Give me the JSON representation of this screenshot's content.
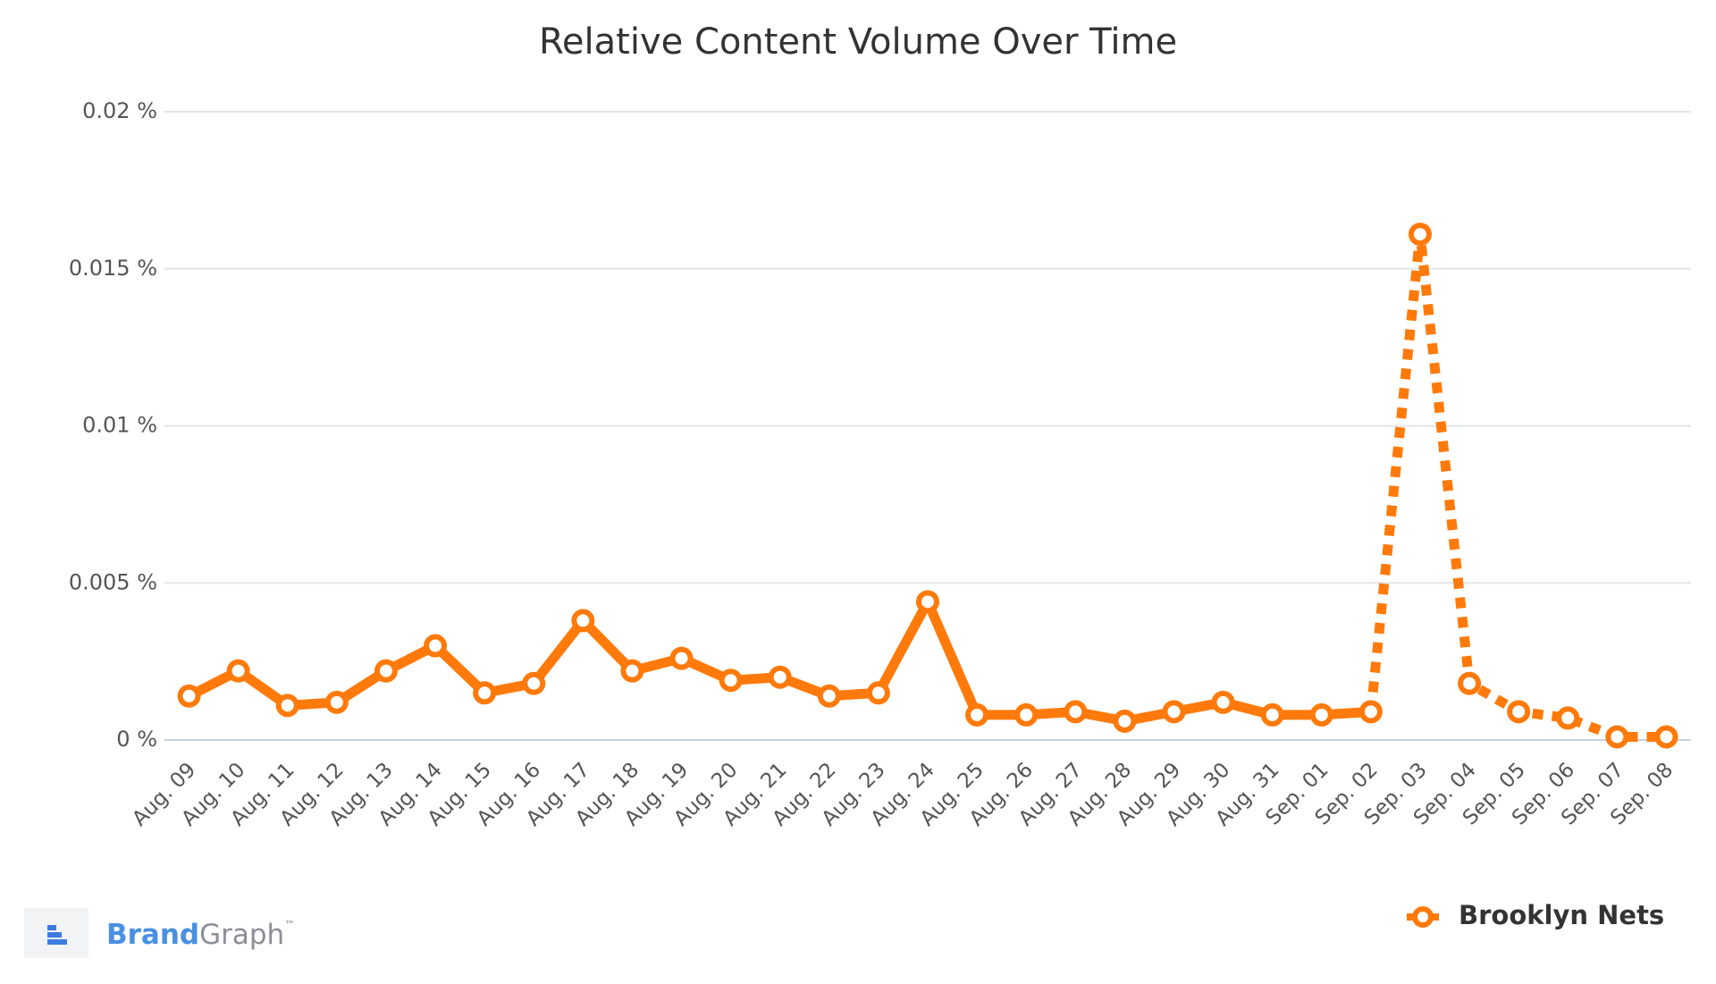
{
  "chart_data": {
    "type": "line",
    "title": "Relative Content Volume Over Time",
    "categories": [
      "Aug. 09",
      "Aug. 10",
      "Aug. 11",
      "Aug. 12",
      "Aug. 13",
      "Aug. 14",
      "Aug. 15",
      "Aug. 16",
      "Aug. 17",
      "Aug. 18",
      "Aug. 19",
      "Aug. 20",
      "Aug. 21",
      "Aug. 22",
      "Aug. 23",
      "Aug. 24",
      "Aug. 25",
      "Aug. 26",
      "Aug. 27",
      "Aug. 28",
      "Aug. 29",
      "Aug. 30",
      "Aug. 31",
      "Sep. 01",
      "Sep. 02",
      "Sep. 03",
      "Sep. 04",
      "Sep. 05",
      "Sep. 06",
      "Sep. 07",
      "Sep. 08"
    ],
    "series": [
      {
        "name": "Brooklyn Nets",
        "color": "#ff7a0a",
        "values": [
          0.0014,
          0.0022,
          0.0011,
          0.0012,
          0.0022,
          0.003,
          0.0015,
          0.0018,
          0.0038,
          0.0022,
          0.0026,
          0.0019,
          0.002,
          0.0014,
          0.0015,
          0.0044,
          0.0008,
          0.0008,
          0.0009,
          0.0006,
          0.0009,
          0.0012,
          0.0008,
          0.0008,
          0.0009,
          0.0161,
          0.0018,
          0.0009,
          0.0007,
          0.0001,
          0.0001
        ],
        "dash_start": 24
      }
    ],
    "ylim": [
      0,
      0.02
    ],
    "yticks": [
      {
        "value": 0,
        "label": "0 %"
      },
      {
        "value": 0.005,
        "label": "0.005 %"
      },
      {
        "value": 0.01,
        "label": "0.01 %"
      },
      {
        "value": 0.015,
        "label": "0.015 %"
      },
      {
        "value": 0.02,
        "label": "0.02 %"
      }
    ],
    "grid": true,
    "legend": "bottom-right"
  },
  "logo": [
    "Brand",
    "Graph",
    "™"
  ]
}
